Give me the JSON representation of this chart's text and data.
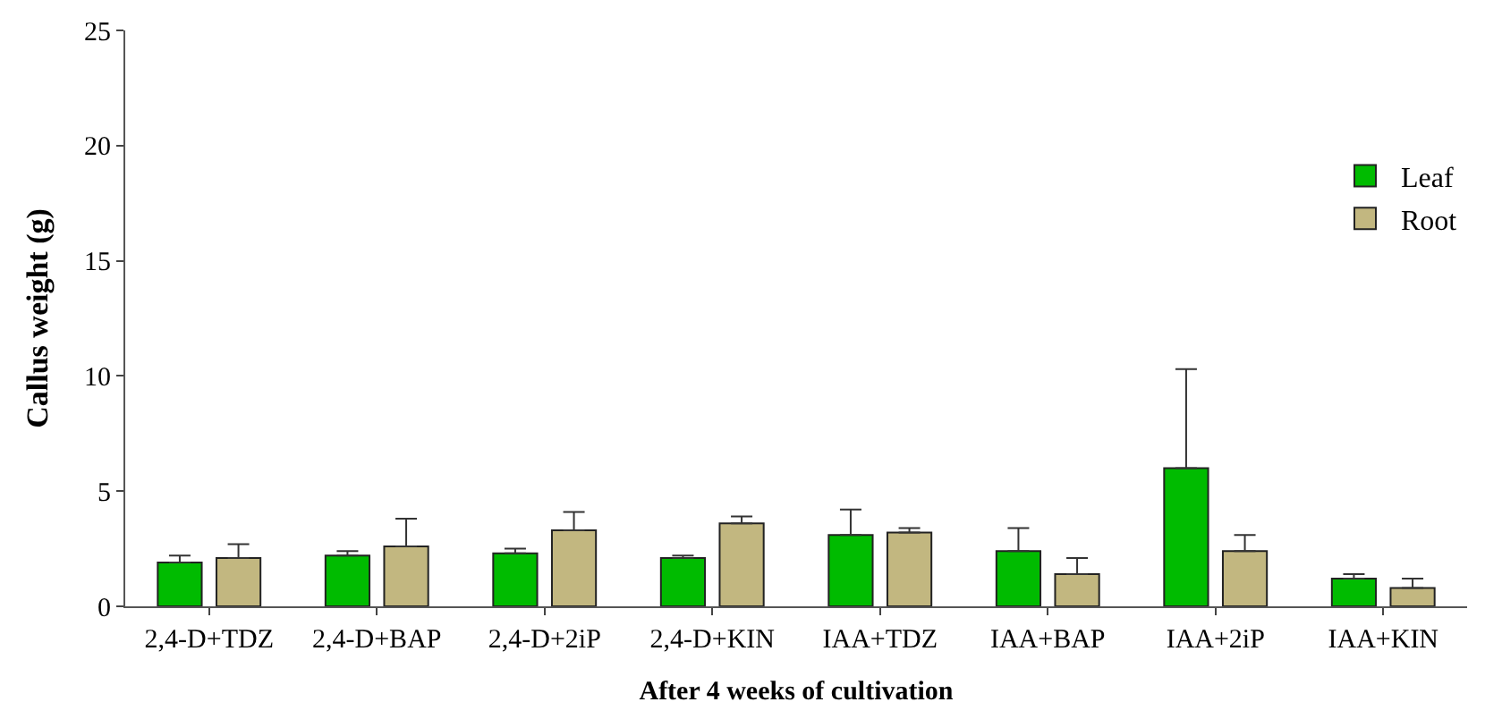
{
  "chart_data": {
    "type": "bar",
    "xlabel": "After 4 weeks of cultivation",
    "ylabel": "Callus weight (g)",
    "categories": [
      "2,4-D+TDZ",
      "2,4-D+BAP",
      "2,4-D+2iP",
      "2,4-D+KIN",
      "IAA+TDZ",
      "IAA+BAP",
      "IAA+2iP",
      "IAA+KIN"
    ],
    "series": [
      {
        "name": "Leaf",
        "color": "#00bb00",
        "values": [
          1.9,
          2.2,
          2.3,
          2.1,
          3.1,
          2.4,
          6.0,
          1.2
        ],
        "errors": [
          [
            1.9,
            2.2
          ],
          [
            2.2,
            2.4
          ],
          [
            2.3,
            2.5
          ],
          [
            2.1,
            2.2
          ],
          [
            3.1,
            4.2
          ],
          [
            2.4,
            3.4
          ],
          [
            6.0,
            10.3
          ],
          [
            1.2,
            1.4
          ]
        ]
      },
      {
        "name": "Root",
        "color": "#c2b780",
        "values": [
          2.1,
          2.6,
          3.3,
          3.6,
          3.2,
          1.4,
          2.4,
          0.8
        ],
        "errors": [
          [
            2.1,
            2.7
          ],
          [
            2.6,
            3.8
          ],
          [
            3.3,
            4.1
          ],
          [
            3.6,
            3.9
          ],
          [
            3.2,
            3.4
          ],
          [
            1.4,
            2.1
          ],
          [
            2.4,
            3.1
          ],
          [
            0.8,
            1.2
          ]
        ]
      }
    ],
    "ylim": [
      0,
      25
    ],
    "yticks": [
      0,
      5,
      10,
      15,
      20,
      25
    ],
    "grid": false,
    "legend": "top right"
  }
}
